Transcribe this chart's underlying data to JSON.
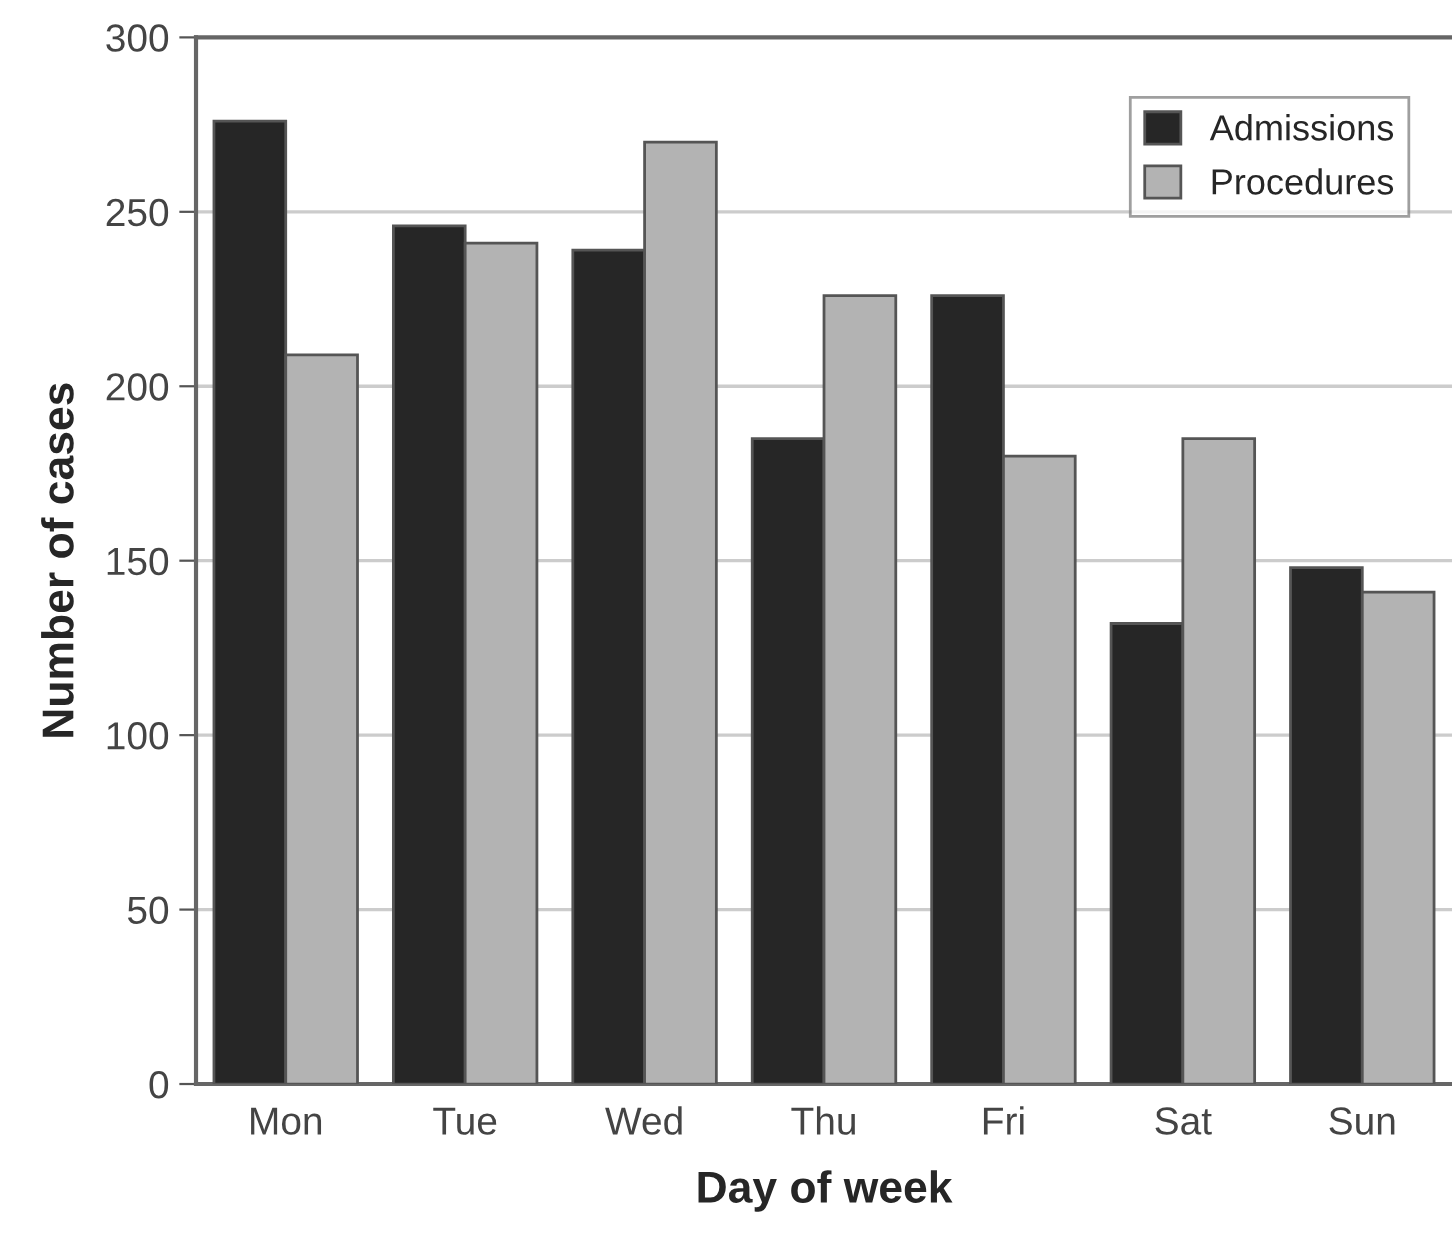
{
  "chart_data": {
    "type": "bar",
    "xlabel": "Day of week",
    "ylabel": "Number of cases",
    "categories": [
      "Mon",
      "Tue",
      "Wed",
      "Thu",
      "Fri",
      "Sat",
      "Sun"
    ],
    "series": [
      {
        "name": "Admissions",
        "color": "#262626",
        "values": [
          276,
          246,
          239,
          185,
          226,
          132,
          148
        ]
      },
      {
        "name": "Procedures",
        "color": "#b3b3b3",
        "values": [
          209,
          241,
          270,
          226,
          180,
          185,
          141
        ]
      }
    ],
    "ylim": [
      0,
      300
    ],
    "yticks": [
      0,
      50,
      100,
      150,
      200,
      250,
      300
    ],
    "grid": "y",
    "legend": "top right"
  }
}
